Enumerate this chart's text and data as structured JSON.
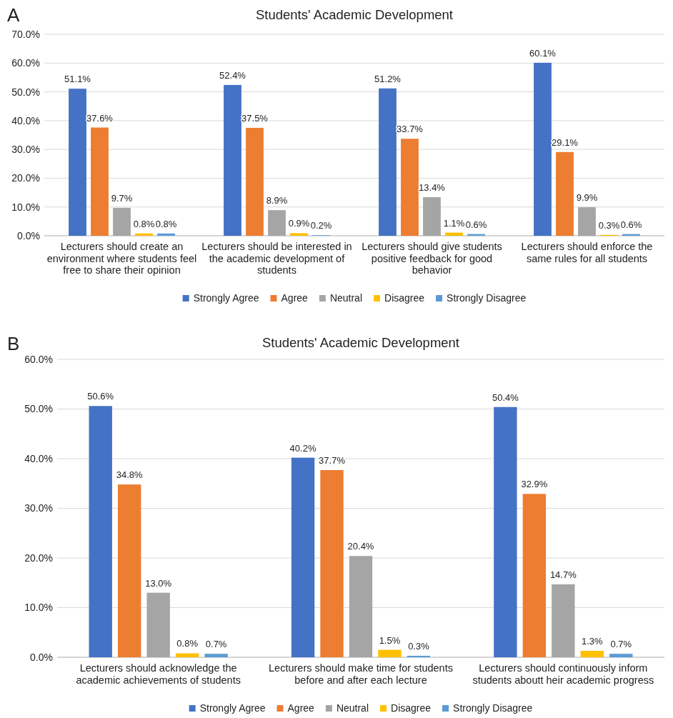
{
  "chart_data": [
    {
      "type": "bar",
      "title": "Students' Academic Development",
      "annotations": [
        "A"
      ],
      "categories": [
        "Lecturers should create an environment where students feel free to share their opinion",
        "Lecturers should be interested in the academic development of students",
        "Lecturers should give students positive feedback for good behavior",
        "Lecturers should enforce the same rules for all students"
      ],
      "series": [
        {
          "name": "Strongly Agree",
          "color": "#4472c4",
          "values": [
            51.1,
            52.4,
            51.2,
            60.1
          ],
          "value_labels": [
            "51.1%",
            "52.4%",
            "51.2%",
            "60.1%"
          ]
        },
        {
          "name": "Agree",
          "color": "#ed7d31",
          "values": [
            37.6,
            37.5,
            33.7,
            29.1
          ],
          "value_labels": [
            "37.6%",
            "37.5%",
            "33.7%",
            "29.1%"
          ]
        },
        {
          "name": "Neutral",
          "color": "#a5a5a5",
          "values": [
            9.7,
            8.9,
            13.4,
            9.9
          ],
          "value_labels": [
            "9.7%",
            "8.9%",
            "13.4%",
            "9.9%"
          ]
        },
        {
          "name": "Disagree",
          "color": "#ffc000",
          "values": [
            0.8,
            0.9,
            1.1,
            0.3
          ],
          "value_labels": [
            "0.8%",
            "0.9%",
            "1.1%",
            "0.3%"
          ]
        },
        {
          "name": "Strongly Disagree",
          "color": "#5b9bd5",
          "values": [
            0.8,
            0.2,
            0.6,
            0.6
          ],
          "value_labels": [
            "0.8%",
            "0.2%",
            "0.6%",
            "0.6%"
          ]
        }
      ],
      "ylim": [
        0,
        70
      ],
      "yticks": [
        {
          "value": 0,
          "label": "0.0%"
        },
        {
          "value": 10,
          "label": "10.0%"
        },
        {
          "value": 20,
          "label": "20.0%"
        },
        {
          "value": 30,
          "label": "30.0%"
        },
        {
          "value": 40,
          "label": "40.0%"
        },
        {
          "value": 50,
          "label": "50.0%"
        },
        {
          "value": 60,
          "label": "60.0%"
        },
        {
          "value": 70,
          "label": "70.0%"
        }
      ],
      "grid": "y",
      "legend": "bottom"
    },
    {
      "type": "bar",
      "title": "Students' Academic Development",
      "annotations": [
        "B"
      ],
      "categories": [
        "Lecturers should acknowledge the academic achievements of students",
        "Lecturers should make time for students before and after each lecture",
        "Lecturers should continuously inform students aboutt heir academic progress"
      ],
      "series": [
        {
          "name": "Strongly Agree",
          "color": "#4472c4",
          "values": [
            50.6,
            40.2,
            50.4
          ],
          "value_labels": [
            "50.6%",
            "40.2%",
            "50.4%"
          ]
        },
        {
          "name": "Agree",
          "color": "#ed7d31",
          "values": [
            34.8,
            37.7,
            32.9
          ],
          "value_labels": [
            "34.8%",
            "37.7%",
            "32.9%"
          ]
        },
        {
          "name": "Neutral",
          "color": "#a5a5a5",
          "values": [
            13.0,
            20.4,
            14.7
          ],
          "value_labels": [
            "13.0%",
            "20.4%",
            "14.7%"
          ]
        },
        {
          "name": "Disagree",
          "color": "#ffc000",
          "values": [
            0.8,
            1.5,
            1.3
          ],
          "value_labels": [
            "0.8%",
            "1.5%",
            "1.3%"
          ]
        },
        {
          "name": "Strongly Disagree",
          "color": "#5b9bd5",
          "values": [
            0.7,
            0.3,
            0.7
          ],
          "value_labels": [
            "0.7%",
            "0.3%",
            "0.7%"
          ]
        }
      ],
      "ylim": [
        0,
        60
      ],
      "yticks": [
        {
          "value": 0,
          "label": "0.0%"
        },
        {
          "value": 10,
          "label": "10.0%"
        },
        {
          "value": 20,
          "label": "20.0%"
        },
        {
          "value": 30,
          "label": "30.0%"
        },
        {
          "value": 40,
          "label": "40.0%"
        },
        {
          "value": 50,
          "label": "50.0%"
        },
        {
          "value": 60,
          "label": "60.0%"
        }
      ],
      "grid": "y",
      "legend": "bottom"
    }
  ]
}
